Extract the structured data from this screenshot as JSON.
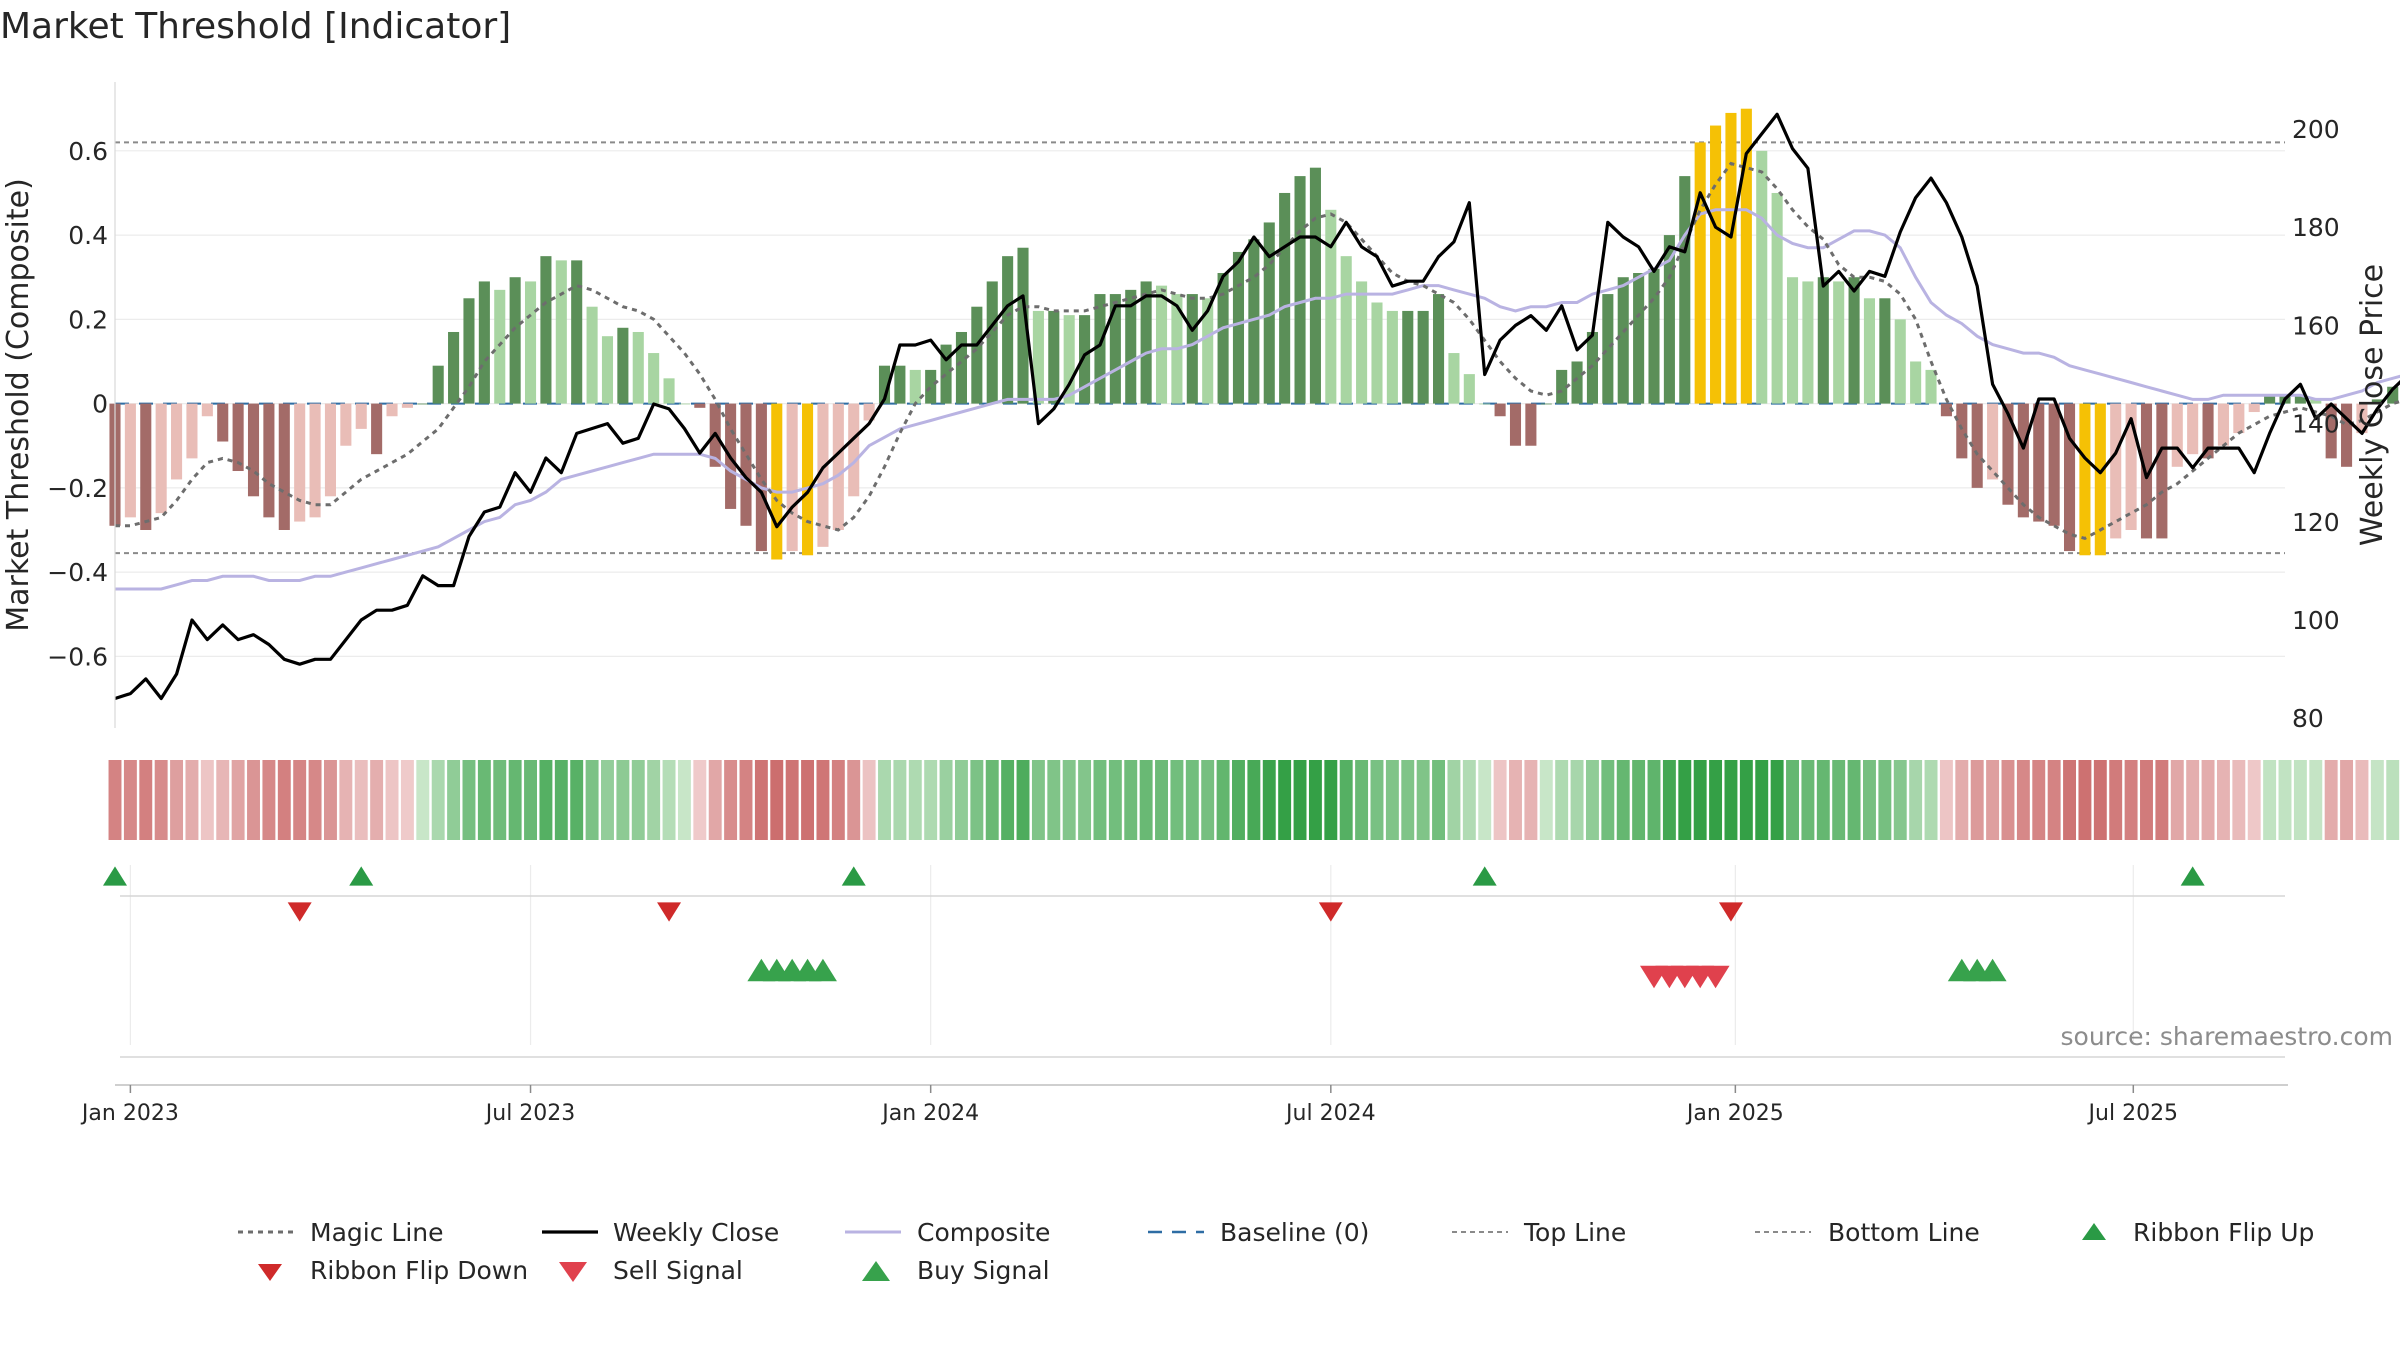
{
  "chart_data": {
    "type": "bar",
    "title": "Market Threshold [Indicator]",
    "ylabel": "Market Threshold (Composite)",
    "ylabel_right": "Weekly Close Price",
    "source": "source: sharemaestro.com",
    "ylim": [
      -0.77,
      0.78
    ],
    "ylim_right": [
      78,
      211
    ],
    "yticks": [
      -0.6,
      -0.4,
      -0.2,
      0,
      0.2,
      0.4,
      0.6
    ],
    "ytick_labels": [
      "−0.6",
      "−0.4",
      "−0.2",
      "0",
      "0.2",
      "0.4",
      "0.6"
    ],
    "yticks_right": [
      80,
      100,
      120,
      140,
      160,
      180,
      200
    ],
    "x_start": "2022-12-26",
    "x_end": "2025-09-08",
    "x_ticks": [
      {
        "date": "2023-01-02",
        "label": "Jan 2023"
      },
      {
        "date": "2023-07-03",
        "label": "Jul 2023"
      },
      {
        "date": "2024-01-01",
        "label": "Jan 2024"
      },
      {
        "date": "2024-07-01",
        "label": "Jul 2024"
      },
      {
        "date": "2025-01-01",
        "label": "Jan 2025"
      },
      {
        "date": "2025-07-01",
        "label": "Jul 2025"
      }
    ],
    "first_week": "2022-12-26",
    "top_line": 0.62,
    "bottom_line": -0.355,
    "baseline": 0,
    "composite_bars": [
      -0.29,
      -0.27,
      -0.3,
      -0.26,
      -0.18,
      -0.13,
      -0.03,
      -0.09,
      -0.16,
      -0.22,
      -0.27,
      -0.3,
      -0.28,
      -0.27,
      -0.22,
      -0.1,
      -0.06,
      -0.12,
      -0.03,
      -0.01,
      0,
      0.09,
      0.17,
      0.25,
      0.29,
      0.27,
      0.3,
      0.29,
      0.35,
      0.34,
      0.34,
      0.23,
      0.16,
      0.18,
      0.17,
      0.12,
      0.06,
      0,
      -0.01,
      -0.15,
      -0.25,
      -0.29,
      -0.35,
      -0.37,
      -0.35,
      -0.36,
      -0.34,
      -0.3,
      -0.22,
      -0.04,
      0.09,
      0.09,
      0.08,
      0.08,
      0.14,
      0.17,
      0.23,
      0.29,
      0.35,
      0.37,
      0.22,
      0.22,
      0.21,
      0.21,
      0.26,
      0.26,
      0.27,
      0.29,
      0.28,
      0.26,
      0.26,
      0.25,
      0.31,
      0.36,
      0.39,
      0.43,
      0.5,
      0.54,
      0.56,
      0.46,
      0.35,
      0.29,
      0.24,
      0.22,
      0.22,
      0.22,
      0.26,
      0.12,
      0.07,
      0,
      -0.03,
      -0.1,
      -0.1,
      0,
      0.08,
      0.1,
      0.17,
      0.26,
      0.3,
      0.31,
      0.32,
      0.4,
      0.54,
      0.62,
      0.66,
      0.69,
      0.7,
      0.6,
      0.5,
      0.3,
      0.29,
      0.3,
      0.29,
      0.3,
      0.25,
      0.25,
      0.2,
      0.1,
      0.08,
      -0.03,
      -0.13,
      -0.2,
      -0.18,
      -0.24,
      -0.27,
      -0.28,
      -0.29,
      -0.35,
      -0.36,
      -0.36,
      -0.32,
      -0.3,
      -0.32,
      -0.32,
      -0.15,
      -0.12,
      -0.13,
      -0.1,
      -0.07,
      -0.02,
      0.02,
      0.02,
      0.02,
      0.01,
      -0.13,
      -0.15,
      -0.07,
      0.01,
      0.04,
      0.04,
      0.07,
      0.05,
      0.03
    ],
    "composite_line": [
      -0.44,
      -0.44,
      -0.44,
      -0.44,
      -0.43,
      -0.42,
      -0.42,
      -0.41,
      -0.41,
      -0.41,
      -0.42,
      -0.42,
      -0.42,
      -0.41,
      -0.41,
      -0.4,
      -0.39,
      -0.38,
      -0.37,
      -0.36,
      -0.35,
      -0.34,
      -0.32,
      -0.3,
      -0.28,
      -0.27,
      -0.24,
      -0.23,
      -0.21,
      -0.18,
      -0.17,
      -0.16,
      -0.15,
      -0.14,
      -0.13,
      -0.12,
      -0.12,
      -0.12,
      -0.12,
      -0.13,
      -0.16,
      -0.18,
      -0.2,
      -0.21,
      -0.21,
      -0.2,
      -0.19,
      -0.17,
      -0.14,
      -0.1,
      -0.08,
      -0.06,
      -0.05,
      -0.04,
      -0.03,
      -0.02,
      -0.01,
      0,
      0.01,
      0.01,
      0.01,
      0.01,
      0.02,
      0.04,
      0.06,
      0.08,
      0.1,
      0.12,
      0.13,
      0.13,
      0.14,
      0.16,
      0.18,
      0.19,
      0.2,
      0.21,
      0.23,
      0.24,
      0.25,
      0.25,
      0.26,
      0.26,
      0.26,
      0.26,
      0.27,
      0.28,
      0.28,
      0.27,
      0.26,
      0.25,
      0.23,
      0.22,
      0.23,
      0.23,
      0.24,
      0.24,
      0.26,
      0.27,
      0.28,
      0.3,
      0.32,
      0.34,
      0.4,
      0.45,
      0.46,
      0.46,
      0.46,
      0.44,
      0.4,
      0.38,
      0.37,
      0.37,
      0.39,
      0.41,
      0.41,
      0.4,
      0.37,
      0.3,
      0.24,
      0.21,
      0.19,
      0.16,
      0.14,
      0.13,
      0.12,
      0.12,
      0.11,
      0.09,
      0.08,
      0.07,
      0.06,
      0.05,
      0.04,
      0.03,
      0.02,
      0.01,
      0.01,
      0.02,
      0.02,
      0.02,
      0.02,
      0.02,
      0.02,
      0.01,
      0.01,
      0.02,
      0.03,
      0.05,
      0.06,
      0.07,
      0.07
    ],
    "magic_line": [
      -0.29,
      -0.29,
      -0.28,
      -0.27,
      -0.23,
      -0.18,
      -0.14,
      -0.13,
      -0.14,
      -0.16,
      -0.19,
      -0.21,
      -0.23,
      -0.24,
      -0.24,
      -0.21,
      -0.18,
      -0.16,
      -0.14,
      -0.12,
      -0.09,
      -0.06,
      -0.01,
      0.04,
      0.1,
      0.14,
      0.18,
      0.21,
      0.24,
      0.26,
      0.28,
      0.27,
      0.25,
      0.23,
      0.22,
      0.2,
      0.16,
      0.12,
      0.07,
      0.01,
      -0.06,
      -0.12,
      -0.18,
      -0.23,
      -0.26,
      -0.28,
      -0.29,
      -0.3,
      -0.27,
      -0.22,
      -0.15,
      -0.07,
      0,
      0.04,
      0.07,
      0.1,
      0.13,
      0.17,
      0.21,
      0.23,
      0.23,
      0.22,
      0.22,
      0.22,
      0.23,
      0.24,
      0.25,
      0.26,
      0.27,
      0.26,
      0.25,
      0.25,
      0.26,
      0.28,
      0.3,
      0.33,
      0.37,
      0.41,
      0.44,
      0.45,
      0.43,
      0.39,
      0.35,
      0.31,
      0.29,
      0.28,
      0.26,
      0.24,
      0.2,
      0.15,
      0.1,
      0.06,
      0.03,
      0.02,
      0.03,
      0.06,
      0.09,
      0.13,
      0.17,
      0.21,
      0.25,
      0.3,
      0.38,
      0.46,
      0.52,
      0.57,
      0.56,
      0.55,
      0.51,
      0.46,
      0.42,
      0.39,
      0.33,
      0.3,
      0.3,
      0.29,
      0.26,
      0.2,
      0.1,
      0.01,
      -0.06,
      -0.12,
      -0.16,
      -0.2,
      -0.24,
      -0.27,
      -0.29,
      -0.31,
      -0.32,
      -0.3,
      -0.28,
      -0.26,
      -0.24,
      -0.21,
      -0.19,
      -0.16,
      -0.13,
      -0.1,
      -0.07,
      -0.05,
      -0.03,
      -0.02,
      -0.01,
      -0.02,
      -0.03,
      -0.05,
      -0.04,
      -0.02,
      0,
      0.01,
      0.02
    ],
    "weekly_close": [
      84,
      85,
      88,
      84,
      89,
      100,
      96,
      99,
      96,
      97,
      95,
      92,
      91,
      92,
      92,
      96,
      100,
      102,
      102,
      103,
      109,
      107,
      107,
      117,
      122,
      123,
      130,
      126,
      133,
      130,
      138,
      139,
      140,
      136,
      137,
      144,
      143,
      139,
      134,
      138,
      133,
      129,
      126,
      119,
      123,
      126,
      131,
      134,
      137,
      140,
      145,
      156,
      156,
      157,
      153,
      156,
      156,
      160,
      164,
      166,
      140,
      143,
      148,
      154,
      156,
      164,
      164,
      166,
      166,
      164,
      159,
      163,
      170,
      173,
      178,
      174,
      176,
      178,
      178,
      176,
      181,
      176,
      174,
      168,
      169,
      169,
      174,
      177,
      185,
      150,
      157,
      160,
      162,
      159,
      164,
      155,
      158,
      181,
      178,
      176,
      171,
      176,
      175,
      187,
      180,
      178,
      195,
      199,
      203,
      196,
      192,
      168,
      171,
      167,
      171,
      170,
      179,
      186,
      190,
      185,
      178,
      168,
      148,
      142,
      135,
      145,
      145,
      137,
      133,
      130,
      134,
      141,
      129,
      135,
      135,
      131,
      135,
      135,
      135,
      130,
      138,
      145,
      148,
      141,
      144,
      141,
      138,
      143,
      147,
      150,
      149,
      151,
      148,
      154,
      151,
      145
    ]
  },
  "legend": {
    "magic_line": "Magic Line",
    "weekly_close": "Weekly Close",
    "composite": "Composite",
    "baseline": "Baseline (0)",
    "top_line": "Top Line",
    "bottom_line": "Bottom Line",
    "ribbon_flip_up": "Ribbon Flip Up",
    "ribbon_flip_down": "Ribbon Flip Down",
    "sell_signal": "Sell Signal",
    "buy_signal": "Buy Signal"
  },
  "signals": {
    "ribbon_flip_up_weeks": [
      0,
      16,
      48,
      89,
      135
    ],
    "ribbon_flip_down_weeks": [
      12,
      36,
      79,
      105
    ],
    "buy_signal_weeks": [
      42,
      43,
      44,
      45,
      46,
      120,
      121,
      122
    ],
    "sell_signal_weeks": [
      100,
      101,
      102,
      103,
      104
    ]
  },
  "colors": {
    "dark_green": "#5b8f58",
    "light_green": "#a8d5a2",
    "dark_red": "#a36b68",
    "light_red": "#e9bdb7",
    "extreme": "#f5c105",
    "weekly_close": "#000000",
    "composite": "#b9b3e2",
    "magic_line": "#6d6d6d",
    "baseline": "#2e6da4",
    "flip_up": "#2a9a45",
    "flip_down": "#cf2a2a",
    "sell": "#e0414d",
    "buy": "#37a24c"
  }
}
